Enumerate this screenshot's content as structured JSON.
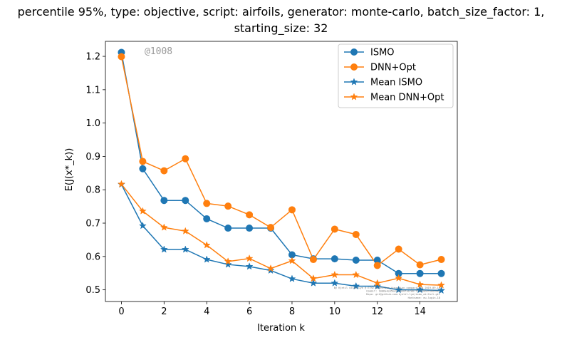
{
  "chart_data": {
    "type": "line",
    "title_line1": "percentile 95%, type: objective, script: airfoils, generator: monte-carlo, batch_size_factor: 1,",
    "title_line2": "starting_size: 32",
    "xlabel": "Iteration k",
    "ylabel": "E(J(x*_k))",
    "xlim": [
      -0.75,
      15.75
    ],
    "ylim": [
      0.465,
      1.245
    ],
    "xticks": [
      0,
      2,
      4,
      6,
      8,
      10,
      12,
      14
    ],
    "yticks": [
      0.5,
      0.6,
      0.7,
      0.8,
      0.9,
      1.0,
      1.1,
      1.2
    ],
    "ytick_labels": [
      "0.5",
      "0.6",
      "0.7",
      "0.8",
      "0.9",
      "1.0",
      "1.1",
      "1.2"
    ],
    "grid": false,
    "legend_position": "top-right",
    "annotation": "@1008",
    "x": [
      0,
      1,
      2,
      3,
      4,
      5,
      6,
      7,
      8,
      9,
      10,
      11,
      12,
      13,
      14,
      15
    ],
    "series": [
      {
        "name": "ISMO",
        "color": "#1f77b4",
        "marker": "circle",
        "values": [
          1.212,
          0.863,
          0.768,
          0.768,
          0.713,
          0.685,
          0.685,
          0.685,
          0.605,
          0.593,
          0.593,
          0.589,
          0.589,
          0.549,
          0.549,
          0.549
        ]
      },
      {
        "name": "DNN+Opt",
        "color": "#ff7f0e",
        "marker": "circle",
        "values": [
          1.199,
          0.885,
          0.857,
          0.893,
          0.759,
          0.751,
          0.725,
          0.687,
          0.74,
          0.591,
          0.682,
          0.666,
          0.573,
          0.622,
          0.575,
          0.591
        ]
      },
      {
        "name": "Mean ISMO",
        "color": "#1f77b4",
        "marker": "star",
        "values": [
          0.816,
          0.692,
          0.621,
          0.621,
          0.591,
          0.576,
          0.57,
          0.558,
          0.533,
          0.52,
          0.52,
          0.511,
          0.511,
          0.5,
          0.5,
          0.498
        ]
      },
      {
        "name": "Mean DNN+Opt",
        "color": "#ff7f0e",
        "marker": "star",
        "values": [
          0.817,
          0.736,
          0.687,
          0.676,
          0.634,
          0.585,
          0.594,
          0.564,
          0.587,
          0.534,
          0.545,
          0.545,
          0.52,
          0.535,
          0.516,
          0.514
        ]
      }
    ],
    "watermark_lines": [
      "By Kjetil Olsen Lye @ ETH2 objective_iteration_compact.svg 2019-09-12",
      "Commit: 1006a4e05ba9caa30f3ec8b7fbebe86dfe6bd4e5",
      "Repo: git@github.com:kjetil-lye/ismo_airfoil.git",
      "Hostname: eu-login-18"
    ]
  }
}
